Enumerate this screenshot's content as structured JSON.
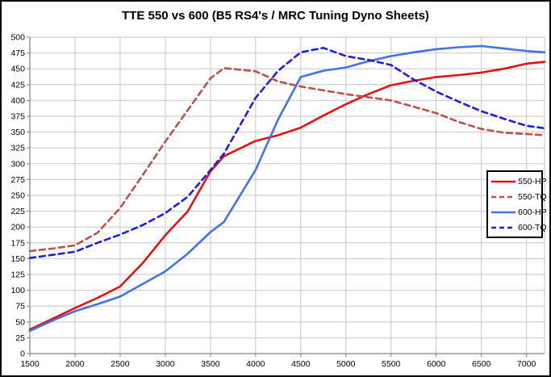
{
  "window": {
    "title": "TTE 550 vs 600 (B5 RS4's / MRC Tuning Dyno Sheets)"
  },
  "chart_data": {
    "type": "line",
    "title": "TTE 550 vs 600 (B5 RS4's / MRC Tuning Dyno Sheets)",
    "xlabel": "",
    "ylabel": "",
    "xlim": [
      1500,
      7200
    ],
    "ylim": [
      0,
      500
    ],
    "grid": true,
    "legend_position": "right-inside",
    "x_ticks": [
      1500,
      2000,
      2500,
      3000,
      3500,
      4000,
      4500,
      5000,
      5500,
      6000,
      6500,
      7000
    ],
    "y_ticks": [
      0,
      25,
      50,
      75,
      100,
      125,
      150,
      175,
      200,
      225,
      250,
      275,
      300,
      325,
      350,
      375,
      400,
      425,
      450,
      475,
      500
    ],
    "x": [
      1500,
      1750,
      2000,
      2250,
      2500,
      2750,
      3000,
      3250,
      3500,
      3650,
      4000,
      4250,
      4500,
      4750,
      5000,
      5250,
      5500,
      5750,
      6000,
      6250,
      6500,
      6750,
      7000,
      7200
    ],
    "series": [
      {
        "name": "550-HP",
        "color": "#e31212",
        "style": "solid",
        "values": [
          38,
          55,
          72,
          88,
          106,
          143,
          187,
          225,
          288,
          312,
          336,
          345,
          357,
          376,
          394,
          410,
          424,
          431,
          437,
          440,
          444,
          450,
          458,
          461
        ]
      },
      {
        "name": "550-TQ",
        "color": "#c0504d",
        "style": "dashed",
        "values": [
          162,
          166,
          171,
          191,
          230,
          282,
          335,
          385,
          435,
          451,
          446,
          430,
          422,
          416,
          410,
          405,
          400,
          390,
          380,
          366,
          355,
          349,
          347,
          345
        ]
      },
      {
        "name": "600-HP",
        "color": "#4470e8",
        "style": "solid",
        "values": [
          36,
          52,
          67,
          78,
          90,
          110,
          130,
          158,
          192,
          208,
          290,
          370,
          437,
          447,
          452,
          462,
          470,
          476,
          481,
          484,
          486,
          482,
          478,
          476
        ]
      },
      {
        "name": "600-TQ",
        "color": "#1f1fdc",
        "style": "dashed",
        "values": [
          151,
          156,
          161,
          175,
          188,
          203,
          222,
          248,
          290,
          316,
          404,
          447,
          476,
          483,
          470,
          464,
          456,
          433,
          414,
          398,
          383,
          371,
          360,
          356
        ]
      }
    ]
  },
  "style_colors": {
    "gridline": "#c6c6c6",
    "axis": "#808080",
    "text": "#000000",
    "background": "#ffffff",
    "frame_border": "#000000"
  }
}
